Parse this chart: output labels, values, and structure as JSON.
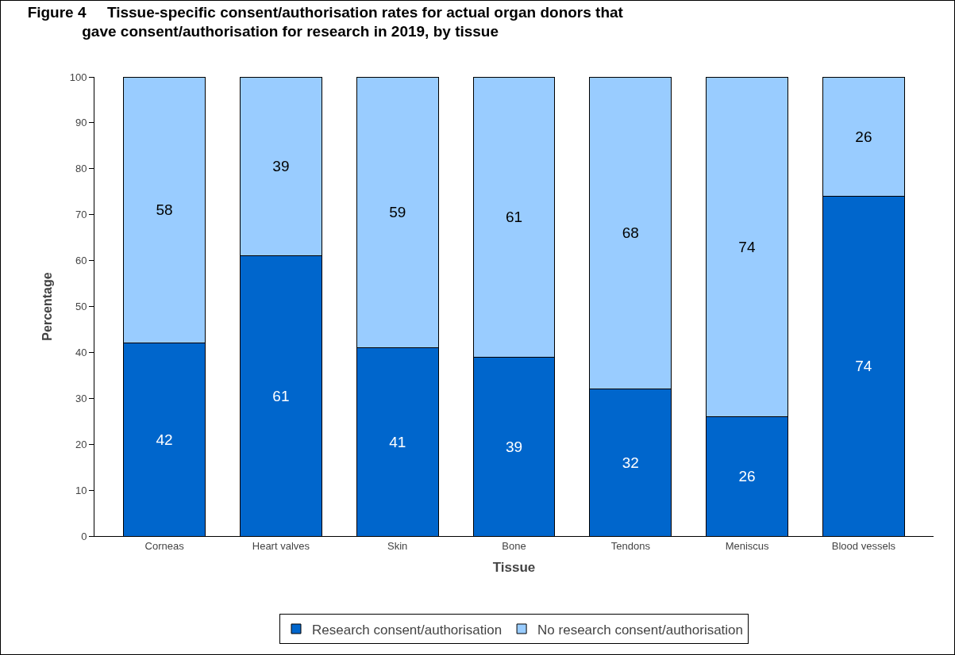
{
  "chart_data": {
    "type": "bar",
    "title": "Figure 4     Tissue-specific consent/authorisation rates for actual organ donors that gave consent/authorisation for research in 2019, by tissue",
    "xlabel": "Tissue",
    "ylabel": "Percentage",
    "categories": [
      "Corneas",
      "Heart valves",
      "Skin",
      "Bone",
      "Tendons",
      "Meniscus",
      "Blood vessels"
    ],
    "series": [
      {
        "name": "Research consent/authorisation",
        "color": "#0066cc",
        "values": [
          42,
          61,
          41,
          39,
          32,
          26,
          74
        ]
      },
      {
        "name": "No research consent/authorisation",
        "color": "#99ccff",
        "values": [
          58,
          39,
          59,
          61,
          68,
          74,
          26
        ]
      }
    ],
    "stacked": true,
    "data_labels": true,
    "ylim": [
      0,
      100
    ],
    "yticks": [
      0,
      10,
      20,
      30,
      40,
      50,
      60,
      70,
      80,
      90,
      100
    ],
    "grid": false,
    "legend": "bottom"
  }
}
